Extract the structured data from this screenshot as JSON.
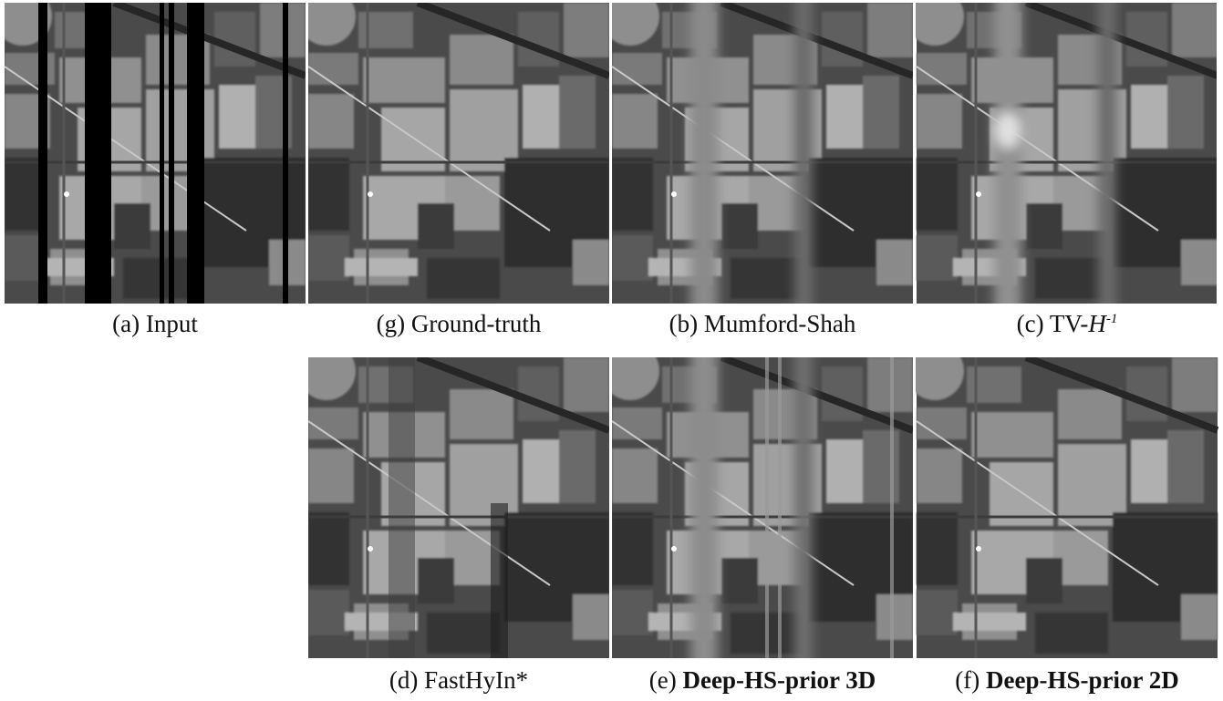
{
  "figure": {
    "panels": [
      {
        "label": "(a)",
        "caption": "Input"
      },
      {
        "label": "(g)",
        "caption": "Ground-truth"
      },
      {
        "label": "(b)",
        "caption": "Mumford-Shah"
      },
      {
        "label": "(c)",
        "caption": "TV-",
        "caption_italic": "H",
        "caption_sup": "-1"
      },
      {
        "label": "(d)",
        "caption": "FastHyIn*"
      },
      {
        "label": "(e)",
        "caption": "Deep-HS-prior 3D",
        "bold": true
      },
      {
        "label": "(f)",
        "caption": "Deep-HS-prior 2D",
        "bold": true
      }
    ]
  }
}
